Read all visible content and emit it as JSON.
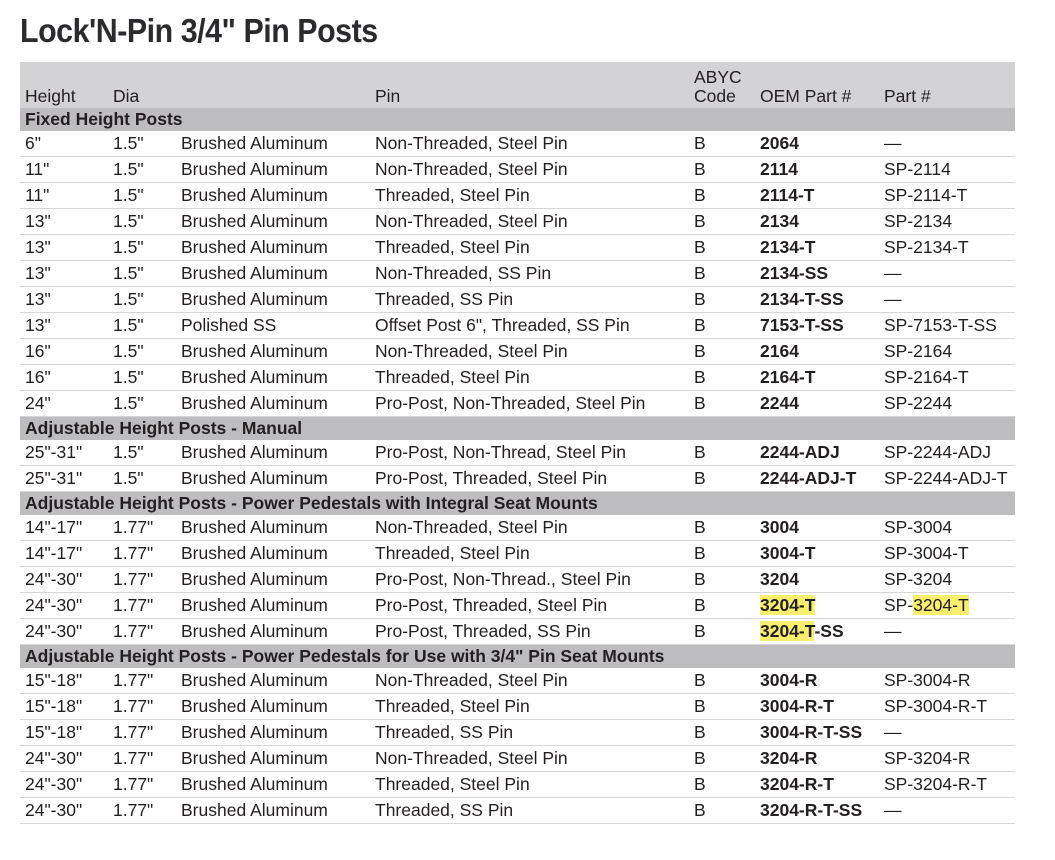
{
  "title": "Lock'N-Pin 3/4\" Pin Posts",
  "highlight_color": "#f9ef6e",
  "headers": [
    "Height",
    "Dia",
    "",
    "Pin",
    "ABYC\nCode",
    "OEM Part #",
    "Part #"
  ],
  "groups": [
    {
      "section": "Fixed Height Posts",
      "rows": [
        [
          "6\"",
          "1.5\"",
          "Brushed Aluminum",
          "Non-Threaded, Steel Pin",
          "B",
          [
            {
              "t": "2064"
            }
          ],
          [
            {
              "t": "—"
            }
          ]
        ],
        [
          "11\"",
          "1.5\"",
          "Brushed Aluminum",
          "Non-Threaded, Steel Pin",
          "B",
          [
            {
              "t": "2114"
            }
          ],
          [
            {
              "t": "SP-2114"
            }
          ]
        ],
        [
          "11\"",
          "1.5\"",
          "Brushed Aluminum",
          "Threaded, Steel Pin",
          "B",
          [
            {
              "t": "2114-T"
            }
          ],
          [
            {
              "t": "SP-2114-T"
            }
          ]
        ],
        [
          "13\"",
          "1.5\"",
          "Brushed Aluminum",
          "Non-Threaded, Steel Pin",
          "B",
          [
            {
              "t": "2134"
            }
          ],
          [
            {
              "t": "SP-2134"
            }
          ]
        ],
        [
          "13\"",
          "1.5\"",
          "Brushed Aluminum",
          "Threaded, Steel Pin",
          "B",
          [
            {
              "t": "2134-T"
            }
          ],
          [
            {
              "t": "SP-2134-T"
            }
          ]
        ],
        [
          "13\"",
          "1.5\"",
          "Brushed Aluminum",
          "Non-Threaded, SS Pin",
          "B",
          [
            {
              "t": "2134-SS"
            }
          ],
          [
            {
              "t": "—"
            }
          ]
        ],
        [
          "13\"",
          "1.5\"",
          "Brushed Aluminum",
          "Threaded, SS Pin",
          "B",
          [
            {
              "t": "2134-T-SS"
            }
          ],
          [
            {
              "t": "—"
            }
          ]
        ],
        [
          "13\"",
          "1.5\"",
          "Polished SS",
          "Offset Post 6\", Threaded, SS Pin",
          "B",
          [
            {
              "t": "7153-T-SS"
            }
          ],
          [
            {
              "t": "SP-7153-T-SS"
            }
          ]
        ],
        [
          "16\"",
          "1.5\"",
          "Brushed Aluminum",
          "Non-Threaded, Steel Pin",
          "B",
          [
            {
              "t": "2164"
            }
          ],
          [
            {
              "t": "SP-2164"
            }
          ]
        ],
        [
          "16\"",
          "1.5\"",
          "Brushed Aluminum",
          "Threaded, Steel Pin",
          "B",
          [
            {
              "t": "2164-T"
            }
          ],
          [
            {
              "t": "SP-2164-T"
            }
          ]
        ],
        [
          "24\"",
          "1.5\"",
          "Brushed Aluminum",
          "Pro-Post, Non-Threaded, Steel Pin",
          "B",
          [
            {
              "t": "2244"
            }
          ],
          [
            {
              "t": "SP-2244"
            }
          ]
        ]
      ]
    },
    {
      "section": "Adjustable Height Posts - Manual",
      "rows": [
        [
          "25\"-31\"",
          "1.5\"",
          "Brushed Aluminum",
          "Pro-Post, Non-Thread, Steel Pin",
          "B",
          [
            {
              "t": "2244-ADJ"
            }
          ],
          [
            {
              "t": "SP-2244-ADJ"
            }
          ]
        ],
        [
          "25\"-31\"",
          "1.5\"",
          "Brushed Aluminum",
          "Pro-Post, Threaded, Steel Pin",
          "B",
          [
            {
              "t": "2244-ADJ-T"
            }
          ],
          [
            {
              "t": "SP-2244-ADJ-T"
            }
          ]
        ]
      ]
    },
    {
      "section": "Adjustable Height Posts - Power Pedestals with Integral Seat Mounts",
      "rows": [
        [
          "14\"-17\"",
          "1.77\"",
          "Brushed Aluminum",
          "Non-Threaded, Steel Pin",
          "B",
          [
            {
              "t": "3004"
            }
          ],
          [
            {
              "t": "SP-3004"
            }
          ]
        ],
        [
          "14\"-17\"",
          "1.77\"",
          "Brushed Aluminum",
          "Threaded, Steel Pin",
          "B",
          [
            {
              "t": "3004-T"
            }
          ],
          [
            {
              "t": "SP-3004-T"
            }
          ]
        ],
        [
          "24\"-30\"",
          "1.77\"",
          "Brushed Aluminum",
          "Pro-Post, Non-Thread., Steel Pin",
          "B",
          [
            {
              "t": "3204"
            }
          ],
          [
            {
              "t": "SP-3204"
            }
          ]
        ],
        [
          "24\"-30\"",
          "1.77\"",
          "Brushed Aluminum",
          "Pro-Post, Threaded, Steel Pin",
          "B",
          [
            {
              "t": "3204-T",
              "hl": true
            }
          ],
          [
            {
              "t": "SP-"
            },
            {
              "t": "3204-T",
              "hl": true
            }
          ]
        ],
        [
          "24\"-30\"",
          "1.77\"",
          "Brushed Aluminum",
          "Pro-Post, Threaded, SS Pin",
          "B",
          [
            {
              "t": "3204-T",
              "hl": true
            },
            {
              "t": "-SS"
            }
          ],
          [
            {
              "t": "—"
            }
          ]
        ]
      ]
    },
    {
      "section": "Adjustable Height Posts - Power Pedestals for Use with 3/4\" Pin Seat Mounts",
      "rows": [
        [
          "15\"-18\"",
          "1.77\"",
          "Brushed Aluminum",
          "Non-Threaded, Steel Pin",
          "B",
          [
            {
              "t": "3004-R"
            }
          ],
          [
            {
              "t": "SP-3004-R"
            }
          ]
        ],
        [
          "15\"-18\"",
          "1.77\"",
          "Brushed Aluminum",
          "Threaded, Steel Pin",
          "B",
          [
            {
              "t": "3004-R-T"
            }
          ],
          [
            {
              "t": "SP-3004-R-T"
            }
          ]
        ],
        [
          "15\"-18\"",
          "1.77\"",
          "Brushed Aluminum",
          "Threaded, SS Pin",
          "B",
          [
            {
              "t": "3004-R-T-SS"
            }
          ],
          [
            {
              "t": "—"
            }
          ]
        ],
        [
          "24\"-30\"",
          "1.77\"",
          "Brushed Aluminum",
          "Non-Threaded, Steel Pin",
          "B",
          [
            {
              "t": "3204-R"
            }
          ],
          [
            {
              "t": "SP-3204-R"
            }
          ]
        ],
        [
          "24\"-30\"",
          "1.77\"",
          "Brushed Aluminum",
          "Threaded, Steel Pin",
          "B",
          [
            {
              "t": "3204-R-T"
            }
          ],
          [
            {
              "t": "SP-3204-R-T"
            }
          ]
        ],
        [
          "24\"-30\"",
          "1.77\"",
          "Brushed Aluminum",
          "Threaded, SS Pin",
          "B",
          [
            {
              "t": "3204-R-T-SS"
            }
          ],
          [
            {
              "t": "—"
            }
          ]
        ]
      ]
    }
  ]
}
